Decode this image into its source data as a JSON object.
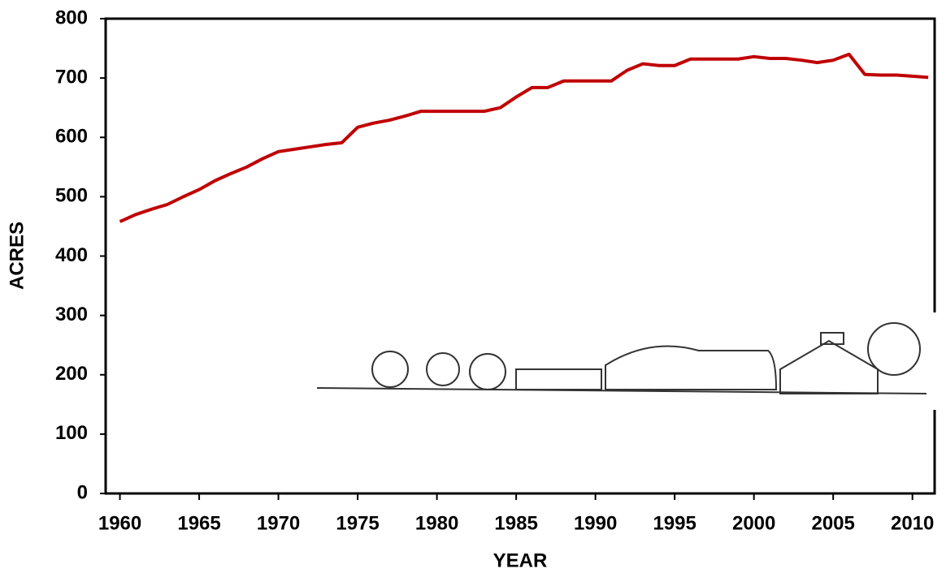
{
  "chart_data": {
    "type": "line",
    "x_label": "YEAR",
    "y_label": "ACRES",
    "x": [
      1960,
      1961,
      1962,
      1963,
      1964,
      1965,
      1966,
      1967,
      1968,
      1969,
      1970,
      1971,
      1972,
      1973,
      1974,
      1975,
      1976,
      1977,
      1978,
      1979,
      1980,
      1981,
      1982,
      1983,
      1984,
      1985,
      1986,
      1987,
      1988,
      1989,
      1990,
      1991,
      1992,
      1993,
      1994,
      1995,
      1996,
      1997,
      1998,
      1999,
      2000,
      2001,
      2002,
      2003,
      2004,
      2005,
      2006,
      2007,
      2008,
      2009,
      2010,
      2011
    ],
    "series": [
      {
        "color": "#c00000",
        "values": [
          458,
          470,
          479,
          487,
          500,
          512,
          527,
          539,
          550,
          564,
          576,
          580,
          584,
          588,
          591,
          617,
          624,
          629,
          636,
          644,
          644,
          644,
          644,
          644,
          650,
          668,
          684,
          684,
          695,
          695,
          695,
          695,
          713,
          724,
          721,
          721,
          732,
          732,
          732,
          732,
          736,
          733,
          733,
          730,
          726,
          730,
          740,
          706,
          705,
          705,
          703,
          701
        ]
      }
    ],
    "xlim": [
      1959.1,
      2011.4
    ],
    "ylim": [
      0,
      800
    ],
    "xticks": [
      1960,
      1965,
      1970,
      1975,
      1980,
      1985,
      1990,
      1995,
      2000,
      2005,
      2010
    ],
    "yticks": [
      0,
      100,
      200,
      300,
      400,
      500,
      600,
      700,
      800
    ]
  }
}
